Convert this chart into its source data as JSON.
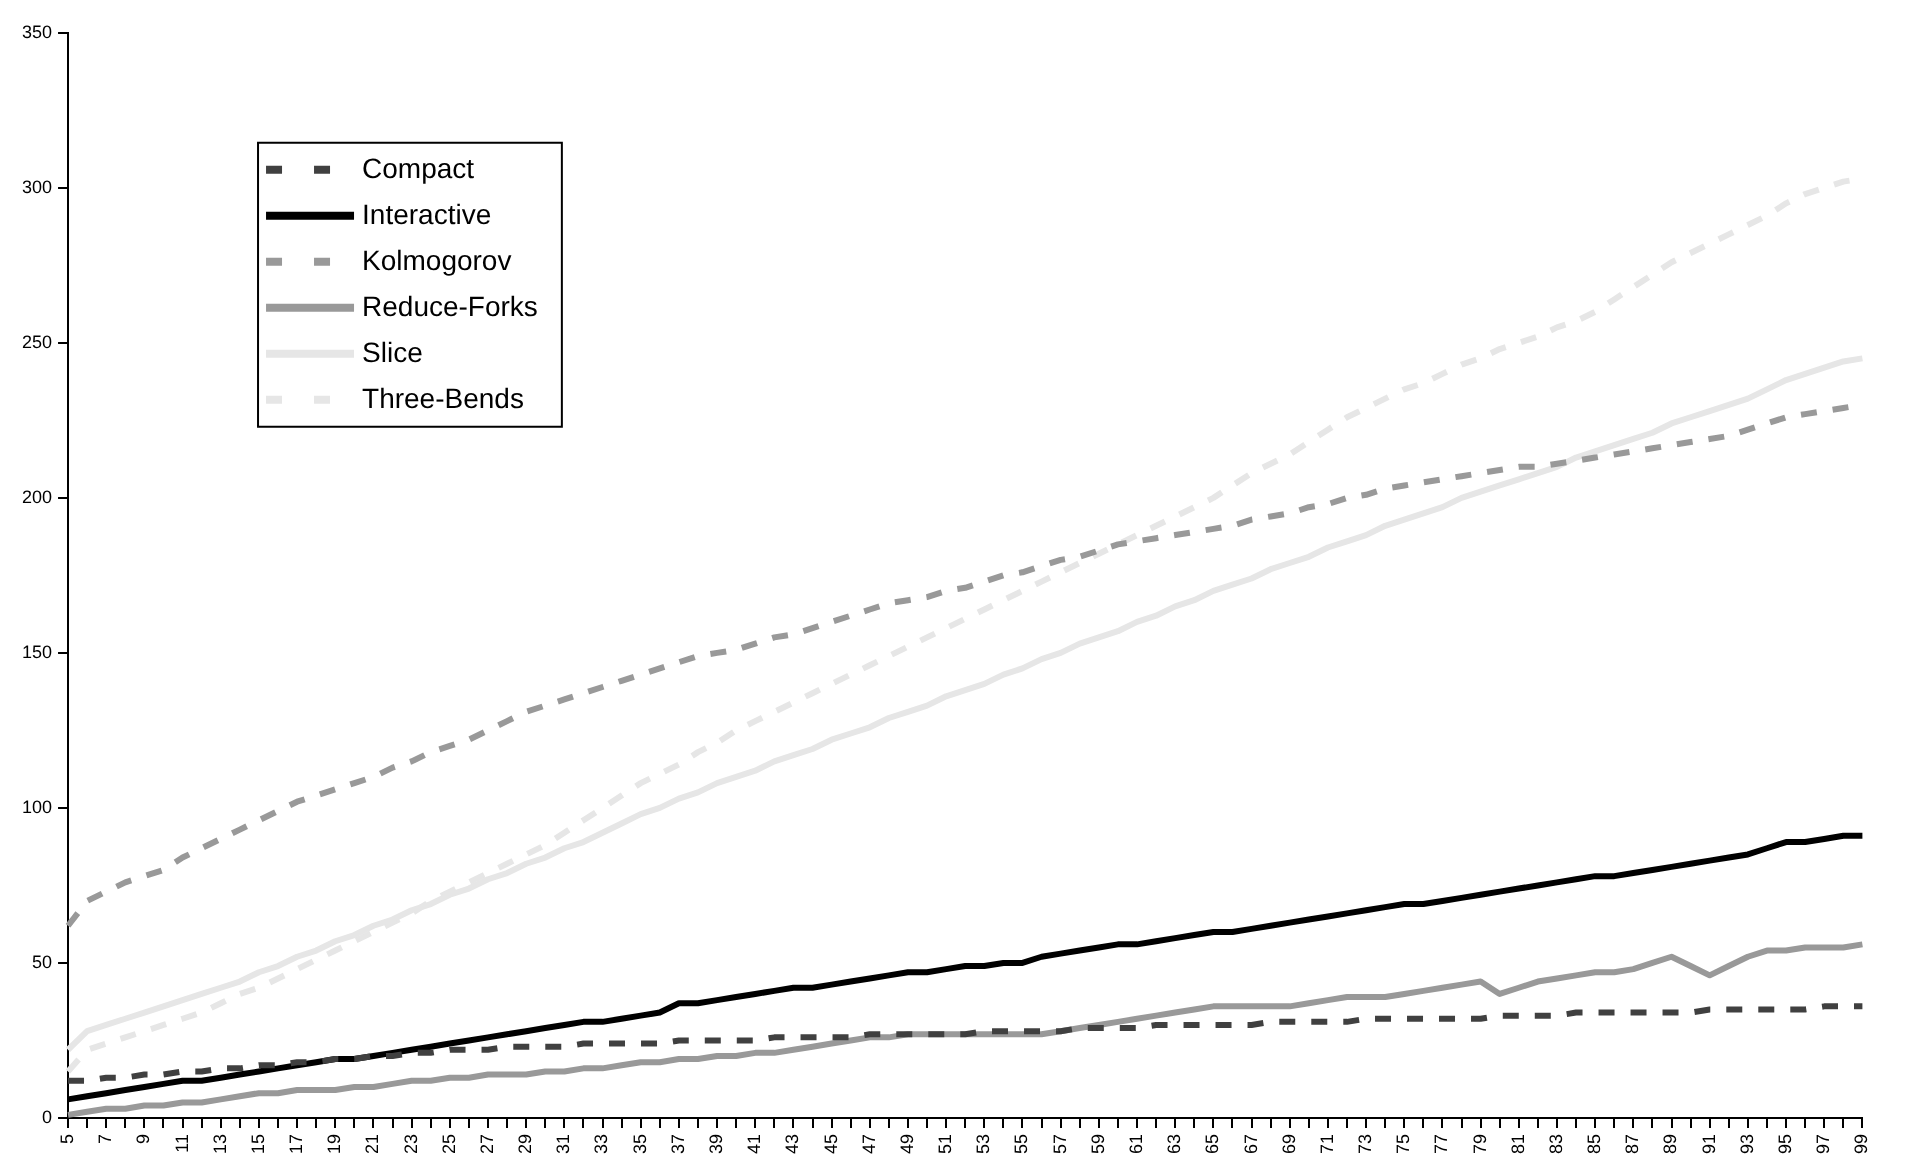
{
  "chart_data": {
    "type": "line",
    "categories": [
      "5",
      null,
      "7",
      null,
      "9",
      null,
      "11",
      null,
      "13",
      null,
      "15",
      null,
      "17",
      null,
      "19",
      null,
      "21",
      null,
      "23",
      null,
      "25",
      null,
      "27",
      null,
      "29",
      null,
      "31",
      null,
      "33",
      null,
      "35",
      null,
      "37",
      null,
      "39",
      null,
      "41",
      null,
      "43",
      null,
      "45",
      null,
      "47",
      null,
      "49",
      null,
      "51",
      null,
      "53",
      null,
      "55",
      null,
      "57",
      null,
      "59",
      null,
      "61",
      null,
      "63",
      null,
      "65",
      null,
      "67",
      null,
      "69",
      null,
      "71",
      null,
      "73",
      null,
      "75",
      null,
      "77",
      null,
      "79",
      null,
      "81",
      null,
      "83",
      null,
      "85",
      null,
      "87",
      null,
      "89",
      null,
      "91",
      null,
      "93",
      null,
      "95",
      null,
      "97",
      null,
      "99"
    ],
    "series": [
      {
        "name": "Compact",
        "color": "#404040",
        "line_style": "dashed",
        "values": [
          12,
          12,
          13,
          13,
          14,
          14,
          15,
          15,
          16,
          16,
          17,
          17,
          18,
          18,
          19,
          19,
          20,
          20,
          21,
          21,
          22,
          22,
          22,
          23,
          23,
          23,
          23,
          24,
          24,
          24,
          24,
          24,
          25,
          25,
          25,
          25,
          25,
          26,
          26,
          26,
          26,
          26,
          27,
          27,
          27,
          27,
          27,
          27,
          28,
          28,
          28,
          28,
          28,
          29,
          29,
          29,
          29,
          30,
          30,
          30,
          30,
          30,
          30,
          31,
          31,
          31,
          31,
          31,
          32,
          32,
          32,
          32,
          32,
          32,
          32,
          33,
          33,
          33,
          33,
          34,
          34,
          34,
          34,
          34,
          34,
          34,
          35,
          35,
          35,
          35,
          35,
          35,
          36,
          36,
          36
        ]
      },
      {
        "name": "Interactive",
        "color": "#000000",
        "line_style": "solid",
        "values": [
          6,
          7,
          8,
          9,
          10,
          11,
          12,
          12,
          13,
          14,
          15,
          16,
          17,
          18,
          19,
          19,
          20,
          21,
          22,
          23,
          24,
          25,
          26,
          27,
          28,
          29,
          30,
          31,
          31,
          32,
          33,
          34,
          37,
          37,
          38,
          39,
          40,
          41,
          42,
          42,
          43,
          44,
          45,
          46,
          47,
          47,
          48,
          49,
          49,
          50,
          50,
          52,
          53,
          54,
          55,
          56,
          56,
          57,
          58,
          59,
          60,
          60,
          61,
          62,
          63,
          64,
          65,
          66,
          67,
          68,
          69,
          69,
          70,
          71,
          72,
          73,
          74,
          75,
          76,
          77,
          78,
          78,
          79,
          80,
          81,
          82,
          83,
          84,
          85,
          87,
          89,
          89,
          90,
          91,
          91
        ]
      },
      {
        "name": "Kolmogorov",
        "color": "#999999",
        "line_style": "dashed",
        "values": [
          62,
          70,
          73,
          76,
          78,
          80,
          84,
          87,
          90,
          93,
          96,
          99,
          102,
          104,
          106,
          108,
          110,
          113,
          115,
          118,
          120,
          122,
          125,
          128,
          131,
          133,
          135,
          137,
          139,
          141,
          143,
          145,
          147,
          149,
          150,
          151,
          153,
          155,
          156,
          158,
          160,
          162,
          164,
          166,
          167,
          168,
          170,
          171,
          173,
          175,
          176,
          178,
          180,
          181,
          183,
          185,
          186,
          187,
          188,
          189,
          190,
          191,
          193,
          194,
          195,
          197,
          198,
          200,
          201,
          203,
          204,
          205,
          206,
          207,
          208,
          209,
          210,
          210,
          211,
          212,
          213,
          214,
          215,
          216,
          217,
          218,
          219,
          220,
          222,
          224,
          226,
          227,
          228,
          229,
          230
        ]
      },
      {
        "name": "Reduce-Forks",
        "color": "#999999",
        "line_style": "solid",
        "values": [
          1,
          2,
          3,
          3,
          4,
          4,
          5,
          5,
          6,
          7,
          8,
          8,
          9,
          9,
          9,
          10,
          10,
          11,
          12,
          12,
          13,
          13,
          14,
          14,
          14,
          15,
          15,
          16,
          16,
          17,
          18,
          18,
          19,
          19,
          20,
          20,
          21,
          21,
          22,
          23,
          24,
          25,
          26,
          26,
          27,
          27,
          27,
          27,
          27,
          27,
          27,
          27,
          28,
          29,
          30,
          31,
          32,
          33,
          34,
          35,
          36,
          36,
          36,
          36,
          36,
          37,
          38,
          39,
          39,
          39,
          40,
          41,
          42,
          43,
          44,
          40,
          42,
          44,
          45,
          46,
          47,
          47,
          48,
          50,
          52,
          49,
          46,
          49,
          52,
          54,
          54,
          55,
          55,
          55,
          56
        ]
      },
      {
        "name": "Slice",
        "color": "#e6e6e6",
        "line_style": "solid",
        "values": [
          22,
          28,
          30,
          32,
          34,
          36,
          38,
          40,
          42,
          44,
          47,
          49,
          52,
          54,
          57,
          59,
          62,
          64,
          67,
          69,
          72,
          74,
          77,
          79,
          82,
          84,
          87,
          89,
          92,
          95,
          98,
          100,
          103,
          105,
          108,
          110,
          112,
          115,
          117,
          119,
          122,
          124,
          126,
          129,
          131,
          133,
          136,
          138,
          140,
          143,
          145,
          148,
          150,
          153,
          155,
          157,
          160,
          162,
          165,
          167,
          170,
          172,
          174,
          177,
          179,
          181,
          184,
          186,
          188,
          191,
          193,
          195,
          197,
          200,
          202,
          204,
          206,
          208,
          210,
          213,
          215,
          217,
          219,
          221,
          224,
          226,
          228,
          230,
          232,
          235,
          238,
          240,
          242,
          244,
          245
        ]
      },
      {
        "name": "Three-Bends",
        "color": "#e6e6e6",
        "line_style": "dashed",
        "values": [
          15,
          22,
          24,
          26,
          28,
          30,
          32,
          34,
          37,
          40,
          42,
          45,
          48,
          51,
          54,
          57,
          60,
          63,
          66,
          70,
          73,
          76,
          79,
          82,
          85,
          88,
          92,
          96,
          100,
          104,
          108,
          111,
          114,
          118,
          121,
          125,
          128,
          131,
          134,
          137,
          140,
          143,
          146,
          149,
          152,
          155,
          158,
          161,
          164,
          167,
          170,
          173,
          176,
          179,
          182,
          185,
          188,
          191,
          194,
          197,
          200,
          204,
          208,
          211,
          214,
          218,
          222,
          226,
          229,
          232,
          235,
          237,
          240,
          243,
          245,
          248,
          250,
          252,
          255,
          257,
          260,
          264,
          268,
          272,
          276,
          279,
          282,
          285,
          288,
          291,
          295,
          298,
          300,
          302,
          303
        ]
      }
    ],
    "ylim": [
      0,
      350
    ],
    "yticks": [
      0,
      50,
      100,
      150,
      200,
      250,
      300,
      350
    ],
    "grid": false,
    "legend": "top left",
    "marker": "none"
  }
}
